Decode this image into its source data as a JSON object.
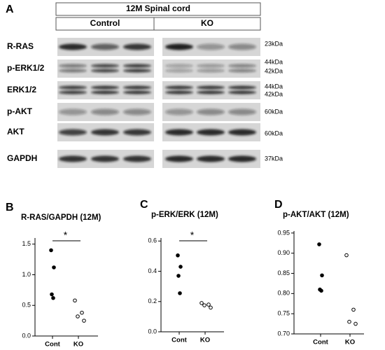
{
  "panel_a": {
    "label": "A",
    "header": "12M Spinal cord",
    "groups": [
      "Control",
      "KO"
    ],
    "rows": [
      {
        "label": "R-RAS",
        "sizes": [
          "23kDa"
        ]
      },
      {
        "label": "p-ERK1/2",
        "sizes": [
          "44kDa",
          "42kDa"
        ]
      },
      {
        "label": "ERK1/2",
        "sizes": [
          "44kDa",
          "42kDa"
        ]
      },
      {
        "label": "p-AKT",
        "sizes": [
          "60kDa"
        ]
      },
      {
        "label": "AKT",
        "sizes": [
          "60kDa"
        ]
      },
      {
        "label": "GAPDH",
        "sizes": [
          "37kDa"
        ]
      }
    ]
  },
  "chart_data": [
    {
      "type": "dot",
      "panel_label": "B",
      "title": "R-RAS/GAPDH (12M)",
      "categories": [
        "Cont",
        "KO"
      ],
      "values": [
        [
          1.4,
          1.12,
          0.68,
          0.62
        ],
        [
          0.58,
          0.38,
          0.32,
          0.25
        ]
      ],
      "markers": [
        "filled",
        "open"
      ],
      "ylim": [
        0,
        1.6
      ],
      "yticks": [
        {
          "value": 0,
          "label": "0.0"
        },
        {
          "value": 0.5,
          "label": "0.5"
        },
        {
          "value": 1,
          "label": "1.0"
        },
        {
          "value": 1.5,
          "label": "1.5"
        }
      ],
      "annotation": "*"
    },
    {
      "type": "dot",
      "panel_label": "C",
      "title": "p-ERK/ERK (12M)",
      "categories": [
        "Cont",
        "KO"
      ],
      "values": [
        [
          0.505,
          0.43,
          0.37,
          0.255
        ],
        [
          0.19,
          0.18,
          0.175,
          0.16
        ]
      ],
      "markers": [
        "filled",
        "open"
      ],
      "ylim": [
        0,
        0.62
      ],
      "yticks": [
        {
          "value": 0,
          "label": "0.0"
        },
        0.2,
        0.4,
        0.6
      ],
      "annotation": "*"
    },
    {
      "type": "dot",
      "panel_label": "D",
      "title": "p-AKT/AKT (12M)",
      "categories": [
        "Cont",
        "KO"
      ],
      "values": [
        [
          0.922,
          0.845,
          0.81,
          0.807
        ],
        [
          0.895,
          0.76,
          0.73,
          0.725
        ]
      ],
      "markers": [
        "filled",
        "open"
      ],
      "ylim": [
        0.7,
        0.955
      ],
      "yticks": [
        {
          "value": 0.7,
          "label": "0.70"
        },
        0.75,
        {
          "value": 0.8,
          "label": "0.80"
        },
        0.85,
        {
          "value": 0.9,
          "label": "0.90"
        },
        0.95
      ]
    }
  ]
}
